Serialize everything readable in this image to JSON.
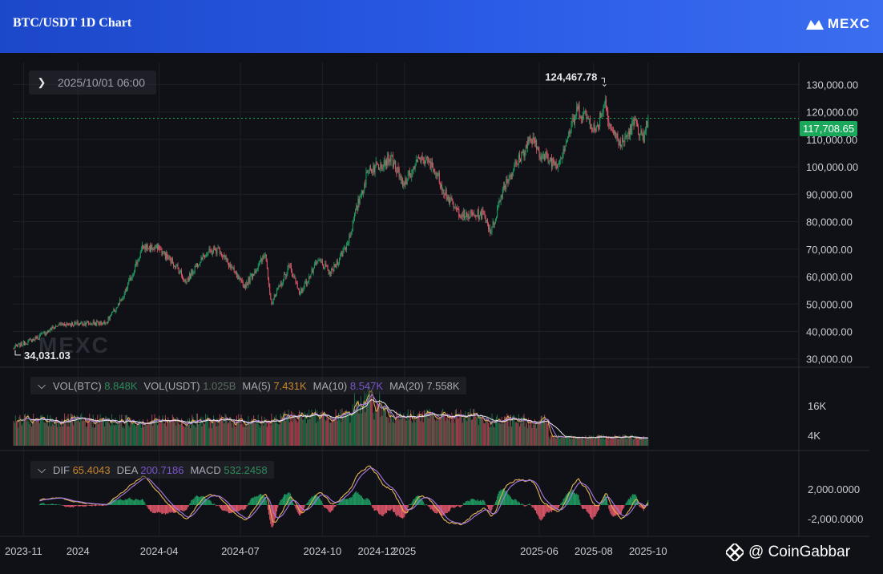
{
  "header": {
    "title": "BTC/USDT 1D Chart",
    "logo_text": "MEXC"
  },
  "crosshair_date": "2025/10/01 06:00",
  "current_price": "117,708.65",
  "annotations": {
    "high": "124,467.78",
    "low": "34,031.03"
  },
  "price_watermark": "MEXC",
  "volume_legend": {
    "vol_btc_label": "VOL(BTC)",
    "vol_btc_value": "8.848K",
    "vol_usdt_label": "VOL(USDT)",
    "vol_usdt_value": "1.025B",
    "ma5_label": "MA(5)",
    "ma5_value": "7.431K",
    "ma10_label": "MA(10)",
    "ma10_value": "8.547K",
    "ma20_label": "MA(20)",
    "ma20_value": "7.558K"
  },
  "macd_legend": {
    "dif_label": "DIF",
    "dif_value": "65.4043",
    "dea_label": "DEA",
    "dea_value": "200.7186",
    "macd_label": "MACD",
    "macd_value": "532.2458"
  },
  "source_watermark": "@ CoinGabbar",
  "colors": {
    "up": "#1f9d62",
    "down": "#e2576b",
    "current_price_line": "#1aa85a",
    "ma5": "#e3b452",
    "ma10": "#a77be8",
    "ma20": "#e8e8e8"
  },
  "chart_data": {
    "type": "candlestick",
    "title": "BTC/USDT 1D Chart",
    "price_axis": {
      "ticks": [
        30000,
        40000,
        50000,
        60000,
        70000,
        80000,
        90000,
        100000,
        110000,
        120000,
        130000
      ],
      "tick_labels": [
        "30,000.00",
        "40,000.00",
        "50,000.00",
        "60,000.00",
        "70,000.00",
        "80,000.00",
        "90,000.00",
        "100,000.00",
        "110,000.00",
        "120,000.00",
        "130,000.00"
      ],
      "range": [
        27000,
        138000
      ]
    },
    "x_axis_labels": [
      "2023-11",
      "2024",
      "2024-04",
      "2024-07",
      "2024-10",
      "2024-12",
      "2025",
      "2025-06",
      "2025-08",
      "2025-10"
    ],
    "price_path": {
      "dates": [
        "2023-10-20",
        "2023-11-15",
        "2023-12-10",
        "2024-01-10",
        "2024-02-01",
        "2024-02-20",
        "2024-03-14",
        "2024-04-01",
        "2024-04-20",
        "2024-05-01",
        "2024-05-20",
        "2024-06-07",
        "2024-07-05",
        "2024-07-29",
        "2024-08-05",
        "2024-08-25",
        "2024-09-06",
        "2024-09-27",
        "2024-10-10",
        "2024-10-29",
        "2024-11-12",
        "2024-11-22",
        "2024-12-05",
        "2024-12-17",
        "2024-12-30",
        "2025-01-20",
        "2025-02-03",
        "2025-02-25",
        "2025-03-10",
        "2025-03-31",
        "2025-04-08",
        "2025-04-22",
        "2025-05-10",
        "2025-05-22",
        "2025-06-05",
        "2025-06-22",
        "2025-07-14",
        "2025-07-25",
        "2025-08-03",
        "2025-08-14",
        "2025-08-20",
        "2025-09-01",
        "2025-09-17",
        "2025-09-26",
        "2025-10-01"
      ],
      "close": [
        34031.03,
        37500,
        42500,
        43000,
        43000,
        52000,
        71000,
        70000,
        64000,
        58000,
        68000,
        70000,
        56000,
        68000,
        50000,
        64000,
        54000,
        66000,
        61000,
        72000,
        89000,
        99000,
        101000,
        104000,
        93000,
        104000,
        99000,
        85000,
        82000,
        83000,
        76000,
        93000,
        103000,
        110000,
        104000,
        101000,
        121000,
        118000,
        113000,
        124467.78,
        114000,
        108000,
        117000,
        109000,
        117708.65
      ]
    },
    "series": [
      {
        "name": "VOL(BTC)",
        "last": "8.848K"
      },
      {
        "name": "MA(5)",
        "last": "7.431K"
      },
      {
        "name": "MA(10)",
        "last": "8.547K"
      },
      {
        "name": "MA(20)",
        "last": "7.558K"
      },
      {
        "name": "DIF",
        "last": "65.4043"
      },
      {
        "name": "DEA",
        "last": "200.7186"
      },
      {
        "name": "MACD",
        "last": "532.2458"
      }
    ],
    "volume_axis": {
      "tick_labels": [
        "16K",
        "4K"
      ]
    },
    "macd_axis": {
      "tick_labels": [
        "2,000.0000",
        "-2,000.0000"
      ]
    },
    "grid": true
  }
}
